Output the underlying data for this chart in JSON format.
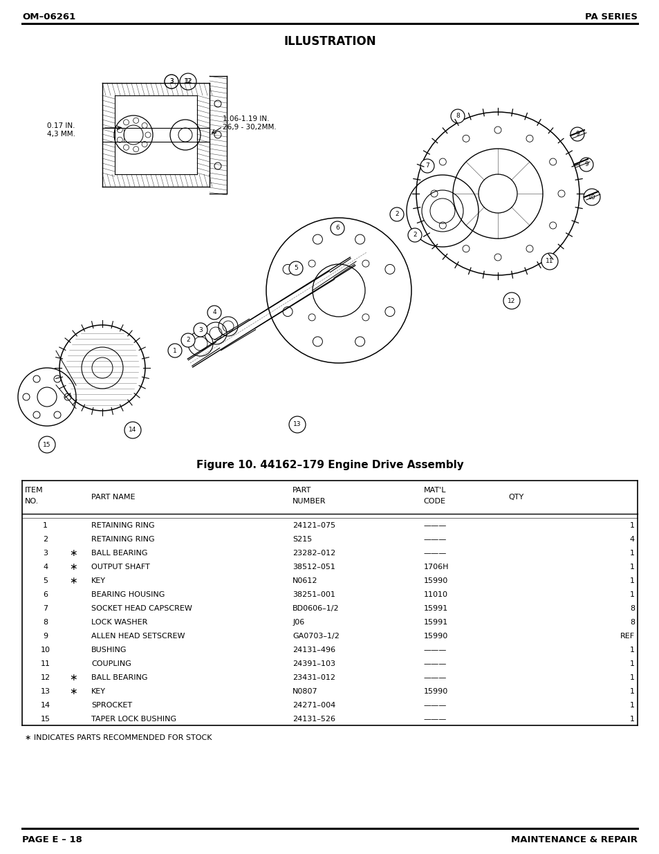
{
  "header_left": "OM–06261",
  "header_right": "PA SERIES",
  "illustration_title": "ILLUSTRATION",
  "figure_caption": "Figure 10. 44162–179 Engine Drive Assembly",
  "table_rows": [
    [
      "1",
      "",
      "RETAINING RING",
      "24121–075",
      "———",
      "1"
    ],
    [
      "2",
      "",
      "RETAINING RING",
      "S215",
      "———",
      "4"
    ],
    [
      "3",
      "*",
      "BALL BEARING",
      "23282–012",
      "———",
      "1"
    ],
    [
      "4",
      "*",
      "OUTPUT SHAFT",
      "38512–051",
      "1706H",
      "1"
    ],
    [
      "5",
      "*",
      "KEY",
      "N0612",
      "15990",
      "1"
    ],
    [
      "6",
      "",
      "BEARING HOUSING",
      "38251–001",
      "11010",
      "1"
    ],
    [
      "7",
      "",
      "SOCKET HEAD CAPSCREW",
      "BD0606–1/2",
      "15991",
      "8"
    ],
    [
      "8",
      "",
      "LOCK WASHER",
      "J06",
      "15991",
      "8"
    ],
    [
      "9",
      "",
      "ALLEN HEAD SETSCREW",
      "GA0703–1/2",
      "15990",
      "REF"
    ],
    [
      "10",
      "",
      "BUSHING",
      "24131–496",
      "———",
      "1"
    ],
    [
      "11",
      "",
      "COUPLING",
      "24391–103",
      "———",
      "1"
    ],
    [
      "12",
      "*",
      "BALL BEARING",
      "23431–012",
      "———",
      "1"
    ],
    [
      "13",
      "*",
      "KEY",
      "N0807",
      "15990",
      "1"
    ],
    [
      "14",
      "",
      "SPROCKET",
      "24271–004",
      "———",
      "1"
    ],
    [
      "15",
      "",
      "TAPER LOCK BUSHING",
      "24131–526",
      "———",
      "1"
    ]
  ],
  "footnote": "∗ INDICATES PARTS RECOMMENDED FOR STOCK",
  "footer_left": "PAGE E – 18",
  "footer_right": "MAINTENANCE & REPAIR",
  "bg_color": "#ffffff",
  "text_color": "#000000",
  "dim1_text": "0.17 IN.\n4,3 MM.",
  "dim2_text": "1.06-1.19 IN.\n26,9 - 30,2MM."
}
